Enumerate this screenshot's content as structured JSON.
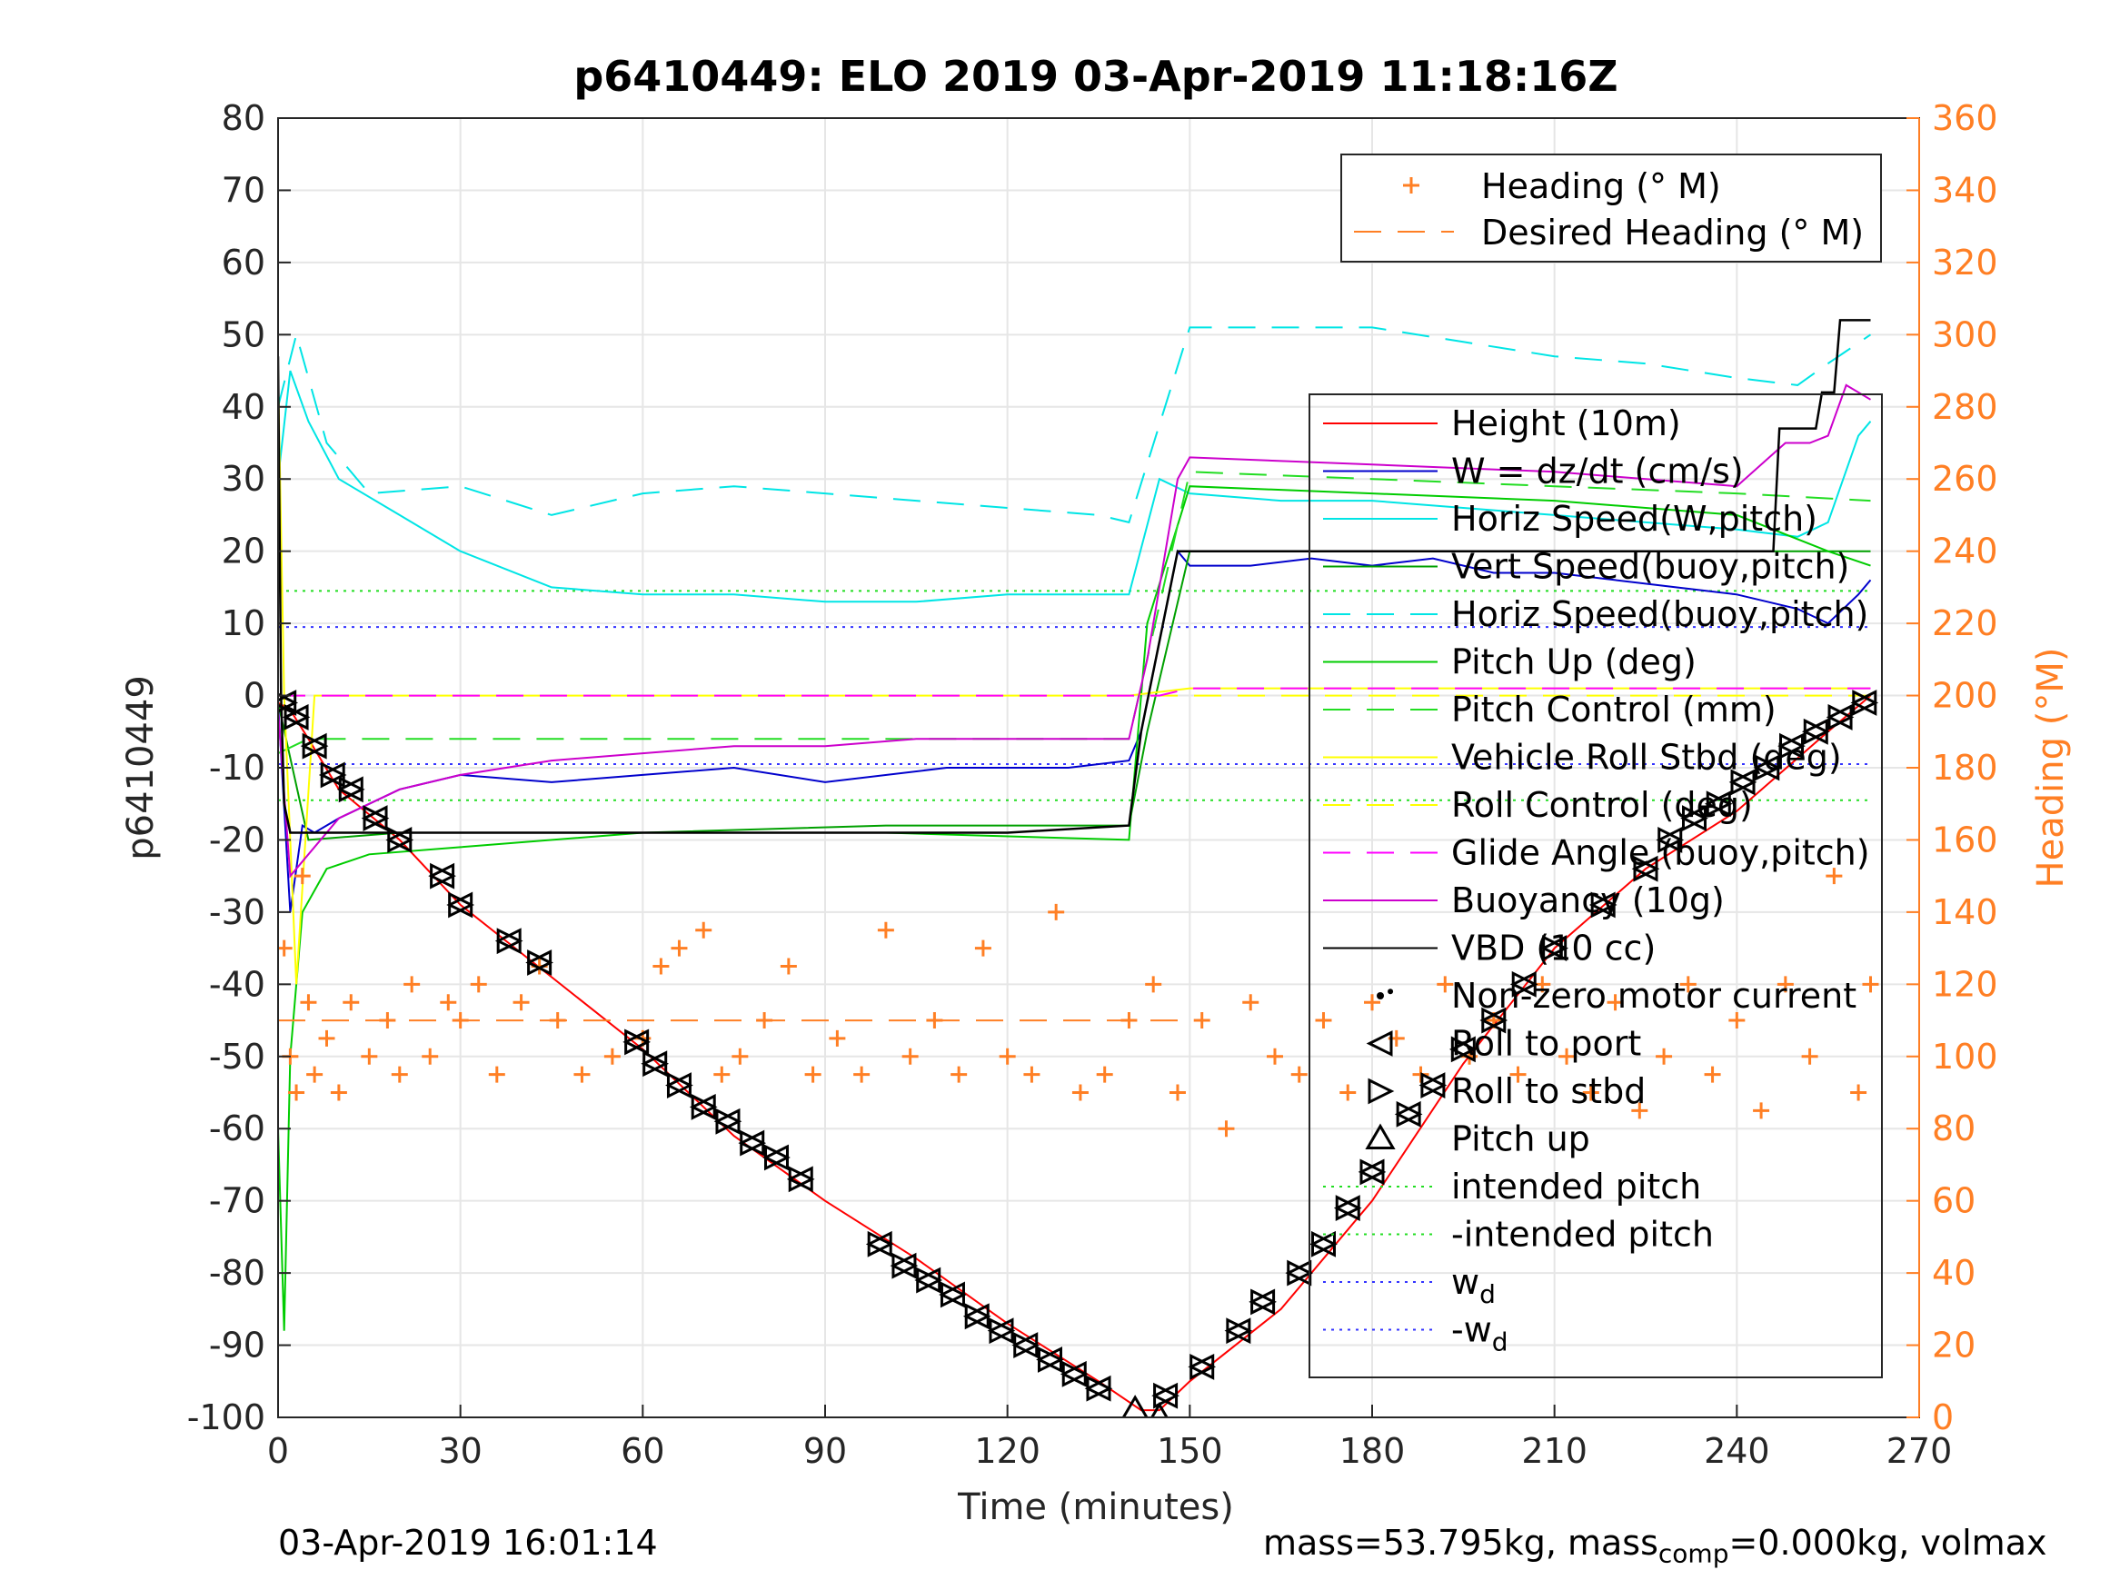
{
  "chart_data": {
    "type": "line",
    "title": "p6410449: ELO 2019 03-Apr-2019 11:18:16Z",
    "xlabel": "Time (minutes)",
    "ylabel": "p6410449",
    "y2label": "Heading (°M)",
    "xlim": [
      0,
      270
    ],
    "ylim": [
      -100,
      80
    ],
    "y2lim": [
      0,
      360
    ],
    "xticks": [
      0,
      30,
      60,
      90,
      120,
      150,
      180,
      210,
      240,
      270
    ],
    "yticks": [
      -100,
      -90,
      -80,
      -70,
      -60,
      -50,
      -40,
      -30,
      -20,
      -10,
      0,
      10,
      20,
      30,
      40,
      50,
      60,
      70,
      80
    ],
    "y2ticks": [
      0,
      20,
      40,
      60,
      80,
      100,
      120,
      140,
      160,
      180,
      200,
      220,
      240,
      260,
      280,
      300,
      320,
      340,
      360
    ],
    "grid": true,
    "colors": {
      "height": "#ff0000",
      "w": "#0000cc",
      "horiz_w": "#00e5e5",
      "vert_buoy": "#00a000",
      "horiz_buoy": "#00e5e5",
      "pitch_up": "#00cc00",
      "pitch_control": "#22dd22",
      "roll": "#ffff00",
      "roll_control": "#ffff00",
      "glide": "#ff00ff",
      "buoyancy": "#cc00cc",
      "vbd": "#000000",
      "heading": "#ff7f24",
      "intended_pitch": "#22dd22",
      "wd": "#3333ff"
    },
    "series": [
      {
        "name": "Height (10m)",
        "key": "height",
        "x": [
          0,
          2,
          5,
          10,
          20,
          30,
          45,
          60,
          75,
          90,
          105,
          120,
          135,
          142,
          145,
          150,
          165,
          180,
          195,
          210,
          225,
          240,
          255,
          262
        ],
        "y": [
          -1,
          -2,
          -6,
          -13,
          -20,
          -29,
          -39,
          -49,
          -61,
          -70,
          -78,
          -87,
          -95,
          -99,
          -99,
          -95,
          -85,
          -70,
          -51,
          -35,
          -24,
          -16,
          -5,
          0
        ]
      },
      {
        "name": "W = dz/dt (cm/s)",
        "key": "w",
        "x": [
          0,
          2,
          4,
          6,
          10,
          20,
          30,
          45,
          60,
          75,
          90,
          110,
          130,
          140,
          142,
          148,
          150,
          160,
          170,
          180,
          190,
          200,
          210,
          220,
          230,
          240,
          250,
          255,
          260,
          262
        ],
        "y": [
          -1,
          -30,
          -18,
          -19,
          -17,
          -13,
          -11,
          -12,
          -11,
          -10,
          -12,
          -10,
          -10,
          -9,
          -5,
          20,
          18,
          18,
          19,
          18,
          19,
          17,
          17,
          16,
          15,
          14,
          12,
          10,
          14,
          16
        ]
      },
      {
        "name": "Horiz Speed(W,pitch)",
        "key": "horiz_w",
        "x": [
          0,
          2,
          5,
          10,
          20,
          30,
          45,
          60,
          75,
          90,
          105,
          120,
          135,
          140,
          145,
          150,
          165,
          180,
          195,
          210,
          225,
          240,
          250,
          255,
          260,
          262
        ],
        "y": [
          30,
          45,
          38,
          30,
          25,
          20,
          15,
          14,
          14,
          13,
          13,
          14,
          14,
          14,
          30,
          28,
          27,
          27,
          26,
          25,
          24,
          23,
          22,
          24,
          36,
          38
        ]
      },
      {
        "name": "Vert Speed(buoy,pitch)",
        "key": "vert_buoy",
        "x": [
          0,
          5,
          20,
          60,
          100,
          140,
          143,
          150,
          180,
          210,
          240,
          262
        ],
        "y": [
          -1,
          -20,
          -19,
          -19,
          -18,
          -18,
          -5,
          20,
          20,
          20,
          20,
          20
        ]
      },
      {
        "name": "Horiz Speed(buoy,pitch)",
        "key": "horiz_buoy",
        "x": [
          0,
          3,
          8,
          15,
          30,
          45,
          60,
          75,
          90,
          105,
          120,
          135,
          140,
          150,
          165,
          180,
          195,
          210,
          225,
          240,
          250,
          255,
          262
        ],
        "y": [
          40,
          50,
          35,
          28,
          29,
          25,
          28,
          29,
          28,
          27,
          26,
          25,
          24,
          51,
          51,
          51,
          49,
          47,
          46,
          44,
          43,
          46,
          50
        ]
      },
      {
        "name": "Pitch Up (deg)",
        "key": "pitch_up",
        "x": [
          0,
          1,
          2,
          4,
          8,
          15,
          30,
          60,
          100,
          140,
          143,
          150,
          180,
          210,
          240,
          255,
          262
        ],
        "y": [
          -60,
          -88,
          -50,
          -30,
          -24,
          -22,
          -21,
          -19,
          -19,
          -20,
          10,
          29,
          28,
          27,
          25,
          20,
          18
        ]
      },
      {
        "name": "Pitch Control (mm)",
        "key": "pitch_control",
        "x": [
          0,
          5,
          30,
          60,
          100,
          140,
          150,
          180,
          210,
          240,
          262
        ],
        "y": [
          -8,
          -6,
          -6,
          -6,
          -6,
          -6,
          31,
          30,
          29,
          28,
          27
        ]
      },
      {
        "name": "Vehicle Roll Stbd (deg)",
        "key": "roll",
        "x": [
          0,
          1,
          3,
          6,
          20,
          40,
          60,
          80,
          100,
          120,
          140,
          150,
          170,
          190,
          210,
          230,
          250,
          262
        ],
        "y": [
          45,
          0,
          -40,
          0,
          0,
          0,
          0,
          0,
          0,
          0,
          0,
          1,
          1,
          1,
          1,
          1,
          1,
          1
        ]
      },
      {
        "name": "Roll Control (deg)",
        "key": "roll_control",
        "x": [
          0,
          262
        ],
        "y": [
          0,
          0
        ]
      },
      {
        "name": "Glide Angle (buoy,pitch)",
        "key": "glide",
        "x": [
          0,
          140,
          145,
          150,
          262
        ],
        "y": [
          0,
          0,
          0,
          1,
          1
        ]
      },
      {
        "name": "Buoyancy (10g)",
        "key": "buoyancy",
        "x": [
          0,
          2,
          5,
          10,
          20,
          30,
          45,
          60,
          75,
          90,
          105,
          120,
          135,
          140,
          143,
          148,
          150,
          180,
          210,
          240,
          248,
          252,
          255,
          258,
          262
        ],
        "y": [
          -2,
          -25,
          -22,
          -17,
          -13,
          -11,
          -9,
          -8,
          -7,
          -7,
          -6,
          -6,
          -6,
          -6,
          5,
          30,
          33,
          32,
          31,
          29,
          35,
          35,
          36,
          43,
          41
        ]
      },
      {
        "name": "VBD (10 cc)",
        "key": "vbd",
        "x": [
          0,
          0.5,
          1,
          2,
          5,
          20,
          40,
          60,
          80,
          100,
          120,
          140,
          142,
          148,
          150,
          200,
          240,
          246,
          247,
          253,
          254,
          256,
          257,
          262
        ],
        "y": [
          47,
          0,
          -15,
          -19,
          -19,
          -19,
          -19,
          -19,
          -19,
          -19,
          -19,
          -18,
          -5,
          20,
          20,
          20,
          20,
          20,
          37,
          37,
          42,
          42,
          52,
          52
        ]
      },
      {
        "name": "Heading (° M)",
        "key": "heading",
        "axis": "right",
        "x": [
          1,
          2,
          3,
          4,
          5,
          6,
          8,
          10,
          12,
          15,
          18,
          20,
          22,
          25,
          28,
          30,
          33,
          36,
          40,
          43,
          46,
          50,
          55,
          60,
          63,
          66,
          70,
          73,
          76,
          80,
          84,
          88,
          92,
          96,
          100,
          104,
          108,
          112,
          116,
          120,
          124,
          128,
          132,
          136,
          140,
          144,
          148,
          152,
          156,
          160,
          164,
          168,
          172,
          176,
          180,
          184,
          188,
          192,
          196,
          200,
          204,
          208,
          212,
          216,
          220,
          224,
          228,
          232,
          236,
          240,
          244,
          248,
          252,
          256,
          260,
          262
        ],
        "y": [
          130,
          100,
          90,
          150,
          115,
          95,
          105,
          90,
          115,
          100,
          110,
          95,
          120,
          100,
          115,
          110,
          120,
          95,
          115,
          125,
          110,
          95,
          100,
          105,
          125,
          130,
          135,
          95,
          100,
          110,
          125,
          95,
          105,
          95,
          135,
          100,
          110,
          95,
          130,
          100,
          95,
          140,
          90,
          95,
          110,
          120,
          90,
          110,
          80,
          115,
          100,
          95,
          110,
          90,
          115,
          105,
          95,
          120,
          100,
          110,
          95,
          120,
          100,
          90,
          115,
          85,
          100,
          120,
          95,
          110,
          85,
          120,
          100,
          150,
          90,
          120
        ]
      },
      {
        "name": "Desired Heading (° M)",
        "key": "desired_heading",
        "axis": "right",
        "x": [
          0,
          60,
          100,
          130,
          140,
          145,
          150
        ],
        "y": [
          110,
          110,
          110,
          110,
          110,
          110,
          110
        ]
      }
    ],
    "reference_lines": [
      {
        "name": "intended pitch",
        "key": "intended_pitch",
        "y": 14.5
      },
      {
        "name": "-intended pitch",
        "key": "intended_pitch",
        "y": -14.5
      },
      {
        "name": "w_d",
        "key": "wd",
        "y": 9.5
      },
      {
        "name": "-w_d",
        "key": "wd",
        "y": -9.5
      }
    ],
    "markers": {
      "roll_to_port": [
        [
          1,
          -1
        ],
        [
          3,
          -3
        ],
        [
          6,
          -7
        ],
        [
          9,
          -11
        ],
        [
          12,
          -13
        ],
        [
          16,
          -17
        ],
        [
          20,
          -20
        ],
        [
          27,
          -25
        ],
        [
          30,
          -29
        ],
        [
          38,
          -34
        ],
        [
          43,
          -37
        ],
        [
          59,
          -48
        ],
        [
          62,
          -51
        ],
        [
          66,
          -54
        ],
        [
          70,
          -57
        ],
        [
          74,
          -59
        ],
        [
          78,
          -62
        ],
        [
          82,
          -64
        ],
        [
          86,
          -67
        ],
        [
          99,
          -76
        ],
        [
          103,
          -79
        ],
        [
          107,
          -81
        ],
        [
          111,
          -83
        ],
        [
          115,
          -86
        ],
        [
          119,
          -88
        ],
        [
          123,
          -90
        ],
        [
          127,
          -92
        ],
        [
          131,
          -94
        ],
        [
          135,
          -96
        ],
        [
          146,
          -97
        ],
        [
          152,
          -93
        ],
        [
          158,
          -88
        ],
        [
          162,
          -84
        ],
        [
          168,
          -80
        ],
        [
          172,
          -76
        ],
        [
          176,
          -71
        ],
        [
          180,
          -66
        ],
        [
          186,
          -58
        ],
        [
          190,
          -54
        ],
        [
          195,
          -49
        ],
        [
          200,
          -45
        ],
        [
          205,
          -40
        ],
        [
          210,
          -35
        ],
        [
          218,
          -29
        ],
        [
          225,
          -24
        ],
        [
          229,
          -20
        ],
        [
          233,
          -17
        ],
        [
          237,
          -15
        ],
        [
          241,
          -12
        ],
        [
          245,
          -10
        ],
        [
          249,
          -7
        ],
        [
          253,
          -5
        ],
        [
          257,
          -3
        ],
        [
          261,
          -1
        ]
      ],
      "pitch_up": [
        [
          141,
          -99
        ],
        [
          145,
          -100
        ]
      ],
      "nonzero_motor": [
        [
          183,
          -41
        ]
      ]
    },
    "legend_top": [
      "Heading (° M)",
      "Desired Heading (° M)"
    ],
    "legend_main": [
      "Height (10m)",
      "W = dz/dt (cm/s)",
      "Horiz Speed(W,pitch)",
      "Vert Speed(buoy,pitch)",
      "Horiz Speed(buoy,pitch)",
      "Pitch Up (deg)",
      "Pitch Control (mm)",
      "Vehicle Roll Stbd (deg)",
      "Roll Control (deg)",
      "Glide Angle (buoy,pitch)",
      "Buoyancy (10g)",
      "VBD (10 cc)",
      "Non-zero motor current",
      "Roll to port",
      "Roll to stbd",
      "Pitch up",
      "intended pitch",
      "-intended pitch",
      "w",
      "-w"
    ],
    "legend_subscripts": {
      "w": "d",
      "-w": "d"
    },
    "legend_placement": "top-right"
  },
  "footer": {
    "timestamp": "03-Apr-2019 16:01:14",
    "mass_prefix": "mass=53.795kg, mass",
    "mass_sub": "comp",
    "mass_suffix": "=0.000kg, volmax"
  }
}
